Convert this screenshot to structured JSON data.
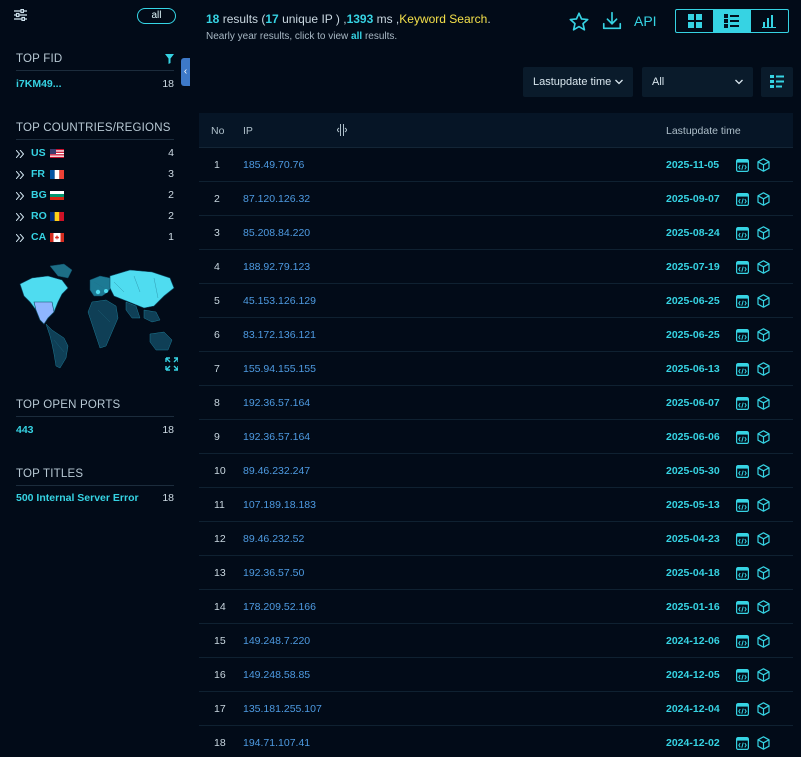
{
  "sidebar": {
    "all_filter": "all",
    "top_fid": {
      "title": "TOP FID",
      "items": [
        {
          "name": "i7KM49...",
          "count": "18"
        }
      ]
    },
    "top_countries": {
      "title": "TOP COUNTRIES/REGIONS",
      "items": [
        {
          "code": "US",
          "count": "4"
        },
        {
          "code": "FR",
          "count": "3"
        },
        {
          "code": "BG",
          "count": "2"
        },
        {
          "code": "RO",
          "count": "2"
        },
        {
          "code": "CA",
          "count": "1"
        }
      ]
    },
    "top_ports": {
      "title": "TOP OPEN PORTS",
      "items": [
        {
          "name": "443",
          "count": "18"
        }
      ]
    },
    "top_titles": {
      "title": "TOP TITLES",
      "items": [
        {
          "name": "500 Internal Server Error",
          "count": "18"
        }
      ]
    }
  },
  "header": {
    "results_count": "18",
    "results_word": " results (",
    "unique_count": "17",
    "unique_word": " unique IP ) ,",
    "ms_value": "1393",
    "ms_word": " ms ,",
    "keyword_label": "Keyword Search",
    "period": ".",
    "sub_before": "Nearly year results, click to view ",
    "sub_link": "all",
    "sub_after": " results.",
    "api_label": "API"
  },
  "controls": {
    "sort_label": "Lastupdate time",
    "filter_label": "All"
  },
  "table": {
    "columns": {
      "no": "No",
      "ip": "IP",
      "time": "Lastupdate time"
    },
    "rows": [
      {
        "no": "1",
        "ip": "185.49.70.76",
        "date": "2025-11-05"
      },
      {
        "no": "2",
        "ip": "87.120.126.32",
        "date": "2025-09-07"
      },
      {
        "no": "3",
        "ip": "85.208.84.220",
        "date": "2025-08-24"
      },
      {
        "no": "4",
        "ip": "188.92.79.123",
        "date": "2025-07-19"
      },
      {
        "no": "5",
        "ip": "45.153.126.129",
        "date": "2025-06-25"
      },
      {
        "no": "6",
        "ip": "83.172.136.121",
        "date": "2025-06-25"
      },
      {
        "no": "7",
        "ip": "155.94.155.155",
        "date": "2025-06-13"
      },
      {
        "no": "8",
        "ip": "192.36.57.164",
        "date": "2025-06-07"
      },
      {
        "no": "9",
        "ip": "192.36.57.164",
        "date": "2025-06-06"
      },
      {
        "no": "10",
        "ip": "89.46.232.247",
        "date": "2025-05-30"
      },
      {
        "no": "11",
        "ip": "107.189.18.183",
        "date": "2025-05-13"
      },
      {
        "no": "12",
        "ip": "89.46.232.52",
        "date": "2025-04-23"
      },
      {
        "no": "13",
        "ip": "192.36.57.50",
        "date": "2025-04-18"
      },
      {
        "no": "14",
        "ip": "178.209.52.166",
        "date": "2025-01-16"
      },
      {
        "no": "15",
        "ip": "149.248.7.220",
        "date": "2024-12-06"
      },
      {
        "no": "16",
        "ip": "149.248.58.85",
        "date": "2024-12-05"
      },
      {
        "no": "17",
        "ip": "135.181.255.107",
        "date": "2024-12-04"
      },
      {
        "no": "18",
        "ip": "194.71.107.41",
        "date": "2024-12-02"
      }
    ]
  },
  "colors": {
    "accent": "#36d3e3",
    "ip_link": "#4e9be2",
    "keyword": "#f4e04a",
    "background": "#020b18"
  }
}
